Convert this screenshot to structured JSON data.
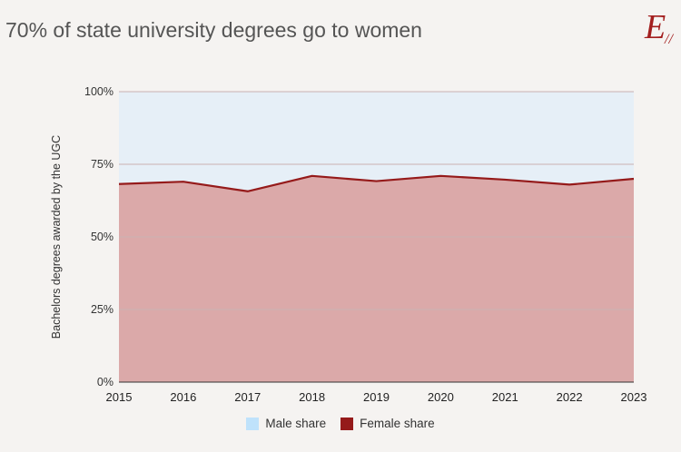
{
  "title": "70% of state university degrees go to women",
  "logo_text": "E//",
  "colors": {
    "background": "#f5f3f1",
    "male_fill": "#e6eff7",
    "male_swatch": "#bfe2fb",
    "female_fill": "#dba9a9",
    "female_line": "#951a1a",
    "grid": "#c9b2b2"
  },
  "chart_data": {
    "type": "area",
    "stacked": true,
    "x": [
      "2015",
      "2016",
      "2017",
      "2018",
      "2019",
      "2020",
      "2021",
      "2022",
      "2023"
    ],
    "series": [
      {
        "name": "Male share",
        "values": [
          31.8,
          31.0,
          34.3,
          29.0,
          30.8,
          29.0,
          30.3,
          32.0,
          30.0
        ]
      },
      {
        "name": "Female share",
        "values": [
          68.2,
          69.0,
          65.7,
          71.0,
          69.2,
          71.0,
          69.7,
          68.0,
          70.0
        ]
      }
    ],
    "ylabel": "Bachelors degrees awarded by the UGC",
    "xlabel": "",
    "ylim": [
      0,
      100
    ],
    "yticks": [
      "0%",
      "25%",
      "50%",
      "75%",
      "100%"
    ],
    "ytick_values": [
      0,
      25,
      50,
      75,
      100
    ],
    "grid": true,
    "legend_position": "bottom-center"
  }
}
